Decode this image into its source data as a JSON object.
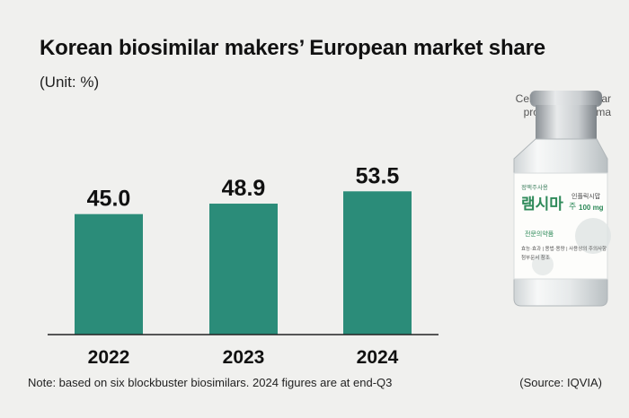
{
  "header": {
    "title": "Korean biosimilar makers’ European market share",
    "unit": "(Unit: %)"
  },
  "photo": {
    "caption_line1": "Celltrion's biosimilar",
    "caption_line2": "product, Remsima",
    "label_top": "정맥주사용",
    "label_brand": "램시마",
    "label_ju": "주",
    "label_sub": "인플릭시맙",
    "label_dose": "100 mg",
    "label_rx": "전문의약품",
    "label_line1": "효능·효과 | 용법·용량 | 사용상의 주의사항",
    "label_line2": "첨부문서 참조"
  },
  "footer": {
    "note": "Note: based on six blockbuster biosimilars. 2024 figures are at end-Q3",
    "source": "(Source: IQVIA)"
  },
  "colors": {
    "bar": "#2b8c79",
    "background": "#f0f0ee",
    "axis": "#222222"
  },
  "chart_data": {
    "type": "bar",
    "categories": [
      "2022",
      "2023",
      "2024"
    ],
    "values": [
      45.0,
      48.9,
      53.5
    ],
    "value_labels": [
      "45.0",
      "48.9",
      "53.5"
    ],
    "title": "Korean biosimilar makers’ European market share",
    "ylabel": "",
    "xlabel": "",
    "grid": false,
    "legend": "none"
  }
}
